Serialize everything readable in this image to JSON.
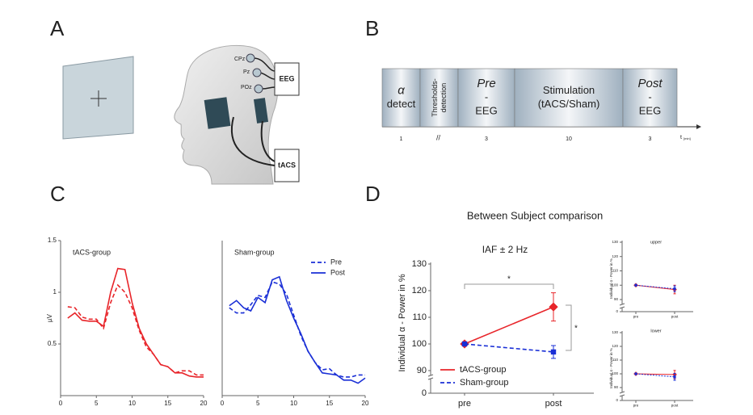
{
  "panel_labels": [
    "A",
    "B",
    "C",
    "D"
  ],
  "setup": {
    "electrodes": [
      "CPz",
      "Pz",
      "POz"
    ],
    "eeg": "EEG",
    "tacs": "tACS"
  },
  "timeline": {
    "segments": [
      {
        "lines": [
          "α",
          "detect"
        ],
        "duration": 1
      },
      {
        "lines": [
          "Thresholds-",
          "detection"
        ]
      },
      {
        "lines": [
          "Pre",
          "-",
          "EEG"
        ],
        "duration": 3
      },
      {
        "lines": [
          "Stimulation",
          "(tACS/Sham)"
        ],
        "duration": 10
      },
      {
        "lines": [
          "Post",
          "-",
          "EEG"
        ],
        "duration": 3
      }
    ],
    "axis_label": "t",
    "axis_unit": "[min]"
  },
  "panel_d_title": "Between Subject comparison",
  "chart_data": [
    {
      "type": "line",
      "title": "tACS-group",
      "ylabel": "µV",
      "x": [
        1,
        2,
        3,
        4,
        5,
        6,
        7,
        8,
        9,
        10,
        11,
        12,
        13,
        14,
        15,
        16,
        17,
        18,
        19,
        20
      ],
      "series": [
        {
          "color": "#e8252a",
          "dash": true,
          "values": [
            0.86,
            0.85,
            0.76,
            0.74,
            0.74,
            0.65,
            0.9,
            1.07,
            1.0,
            0.85,
            0.63,
            0.47,
            0.4,
            0.3,
            0.28,
            0.22,
            0.24,
            0.24,
            0.2,
            0.2
          ]
        },
        {
          "color": "#e8252a",
          "dash": false,
          "values": [
            0.75,
            0.8,
            0.73,
            0.72,
            0.72,
            0.67,
            1.0,
            1.23,
            1.22,
            0.9,
            0.65,
            0.5,
            0.4,
            0.3,
            0.28,
            0.22,
            0.22,
            0.19,
            0.18,
            0.18
          ]
        }
      ],
      "xlim": [
        0,
        20
      ],
      "xticks": [
        0,
        5,
        10,
        15,
        20
      ],
      "ylim": [
        0,
        1.5
      ],
      "yticks": [
        0.5,
        1,
        1.5
      ]
    },
    {
      "type": "line",
      "title": "Sham-group",
      "x": [
        1,
        2,
        3,
        4,
        5,
        6,
        7,
        8,
        9,
        10,
        11,
        12,
        13,
        14,
        15,
        16,
        17,
        18,
        19,
        20
      ],
      "series": [
        {
          "name": "Pre",
          "color": "#1a2fd6",
          "dash": true,
          "values": [
            0.85,
            0.8,
            0.8,
            0.88,
            0.97,
            0.95,
            1.1,
            1.08,
            0.98,
            0.78,
            0.58,
            0.43,
            0.32,
            0.25,
            0.26,
            0.2,
            0.18,
            0.18,
            0.2,
            0.2
          ]
        },
        {
          "name": "Post",
          "color": "#1a2fd6",
          "dash": false,
          "values": [
            0.87,
            0.92,
            0.85,
            0.82,
            0.95,
            0.9,
            1.12,
            1.15,
            0.92,
            0.75,
            0.6,
            0.43,
            0.32,
            0.22,
            0.21,
            0.2,
            0.15,
            0.15,
            0.12,
            0.17
          ]
        }
      ],
      "xlim": [
        0,
        20
      ],
      "xticks": [
        0,
        5,
        10,
        15,
        20
      ],
      "ylim": [
        0,
        1.5
      ]
    },
    {
      "type": "line",
      "title": "IAF ± 2 Hz",
      "ylabel": "Individual α - Power in %",
      "categories": [
        "pre",
        "post"
      ],
      "series": [
        {
          "name": "tACS-group",
          "color": "#e8252a",
          "dash": false,
          "values": [
            100,
            113.9
          ],
          "errors": [
            0.6,
            5.3
          ]
        },
        {
          "name": "Sham-group",
          "color": "#1a2fd6",
          "dash": true,
          "values": [
            100,
            97.0
          ],
          "errors": [
            0.6,
            2.4
          ]
        }
      ],
      "ylim": [
        90,
        130
      ],
      "yticks": [
        90,
        100,
        110,
        120,
        130
      ],
      "break_tick": 0,
      "annotations": [
        "*",
        "*"
      ]
    },
    {
      "type": "line",
      "title": "upper",
      "ylabel": "Individual α - Power in %",
      "categories": [
        "pre",
        "post"
      ],
      "series": [
        {
          "color": "#e8252a",
          "dash": false,
          "values": [
            100,
            97
          ],
          "errors": [
            0.5,
            3
          ]
        },
        {
          "color": "#1a2fd6",
          "dash": true,
          "values": [
            100,
            97.5
          ],
          "errors": [
            0.5,
            2
          ]
        }
      ],
      "ylim": [
        90,
        130
      ],
      "yticks": [
        90,
        100,
        110,
        120,
        130
      ],
      "break_tick": 0
    },
    {
      "type": "line",
      "title": "lower",
      "ylabel": "Individual α - Power in %",
      "categories": [
        "pre",
        "post"
      ],
      "series": [
        {
          "color": "#e8252a",
          "dash": false,
          "values": [
            100,
            99.5
          ],
          "errors": [
            0.5,
            3
          ]
        },
        {
          "color": "#1a2fd6",
          "dash": true,
          "values": [
            100,
            97.8
          ],
          "errors": [
            0.5,
            2.5
          ]
        }
      ],
      "ylim": [
        90,
        130
      ],
      "yticks": [
        90,
        100,
        110,
        120,
        130
      ],
      "break_tick": 0
    }
  ]
}
